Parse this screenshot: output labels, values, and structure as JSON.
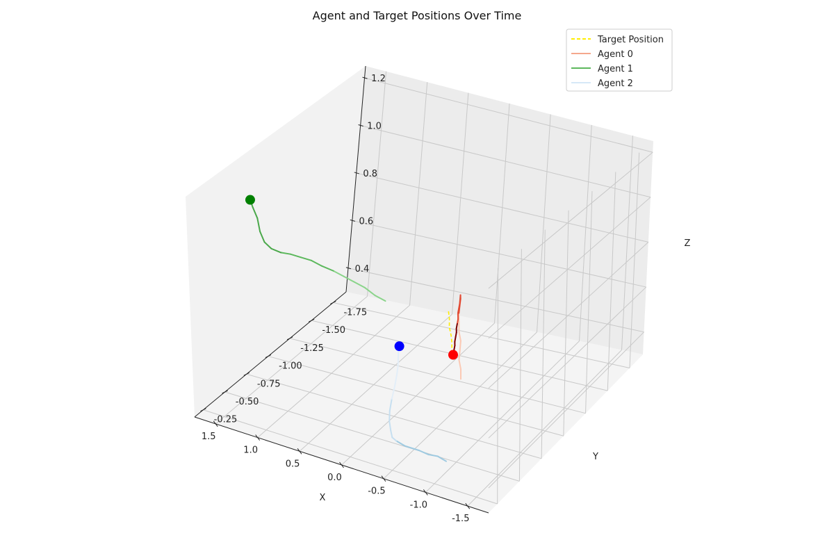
{
  "chart_data": {
    "type": "line",
    "title": "Agent and Target Positions Over Time",
    "xlabel": "X",
    "ylabel": "Y",
    "zlabel": "Z",
    "xlim": [
      -1.75,
      1.75
    ],
    "ylim": [
      -1.9,
      -0.15
    ],
    "zlim": [
      0.3,
      1.25
    ],
    "xticks": [
      "-1.5",
      "-1.0",
      "-0.5",
      "0.0",
      "0.5",
      "1.0",
      "1.5"
    ],
    "yticks": [
      "-1.75",
      "-1.50",
      "-1.25",
      "-1.00",
      "-0.75",
      "-0.50",
      "-0.25"
    ],
    "zticks": [
      "0.4",
      "0.6",
      "0.8",
      "1.0",
      "1.2"
    ],
    "grid": true,
    "legend_position": "top-right",
    "legend": [
      {
        "label": "Target Position",
        "color": "#ffee00",
        "style": "dashed"
      },
      {
        "label": "Agent 0",
        "color": "#f5a78c",
        "style": "solid"
      },
      {
        "label": "Agent 1",
        "color": "#5cb85c",
        "style": "solid"
      },
      {
        "label": "Agent 2",
        "color": "#d6e8f7",
        "style": "solid"
      }
    ],
    "series": [
      {
        "name": "Target Position",
        "color": "#ffee00",
        "points": [
          [
            -1.12,
            -0.3,
            1.0
          ],
          [
            -1.13,
            -0.3,
            0.97
          ],
          [
            -1.14,
            -0.29,
            0.94
          ],
          [
            -1.16,
            -0.29,
            0.91
          ],
          [
            -1.17,
            -0.29,
            0.88
          ],
          [
            -1.18,
            -0.28,
            0.85
          ],
          [
            -1.19,
            -0.28,
            0.82
          ]
        ]
      },
      {
        "name": "Agent 0",
        "colors": [
          "#fbc9b4",
          "#e24a33",
          "#7a0000"
        ],
        "end_marker_color": "#ff0000",
        "points": [
          [
            -1.22,
            -0.34,
            0.72
          ],
          [
            -1.22,
            -0.34,
            0.76
          ],
          [
            -1.21,
            -0.33,
            0.8
          ],
          [
            -1.22,
            -0.33,
            0.84
          ],
          [
            -1.23,
            -0.33,
            0.88
          ],
          [
            -1.22,
            -0.32,
            0.92
          ],
          [
            -1.22,
            -0.32,
            0.96
          ],
          [
            -1.23,
            -0.31,
            1.0
          ],
          [
            -1.24,
            -0.31,
            1.03
          ],
          [
            -1.25,
            -0.31,
            1.06
          ],
          [
            -1.26,
            -0.3,
            1.08
          ],
          [
            -1.24,
            -0.31,
            1.04
          ],
          [
            -1.22,
            -0.31,
            1.0
          ],
          [
            -1.21,
            -0.32,
            0.97
          ],
          [
            -1.2,
            -0.32,
            0.95
          ],
          [
            -1.19,
            -0.32,
            0.93
          ],
          [
            -1.18,
            -0.33,
            0.91
          ],
          [
            -1.17,
            -0.33,
            0.89
          ],
          [
            -1.16,
            -0.33,
            0.87
          ],
          [
            -1.15,
            -0.34,
            0.85
          ],
          [
            -1.14,
            -0.34,
            0.83
          ],
          [
            -1.13,
            -0.34,
            0.81
          ]
        ]
      },
      {
        "name": "Agent 1",
        "colors": [
          "#8ad48a",
          "#5cb85c",
          "#4aa84a"
        ],
        "end_marker_color": "#008000",
        "points": [
          [
            -0.05,
            -0.6,
            0.84
          ],
          [
            0.05,
            -0.58,
            0.86
          ],
          [
            0.15,
            -0.56,
            0.89
          ],
          [
            0.25,
            -0.54,
            0.91
          ],
          [
            0.35,
            -0.52,
            0.93
          ],
          [
            0.45,
            -0.5,
            0.95
          ],
          [
            0.55,
            -0.47,
            0.97
          ],
          [
            0.65,
            -0.45,
            0.99
          ],
          [
            0.75,
            -0.43,
            1.0
          ],
          [
            0.85,
            -0.41,
            1.01
          ],
          [
            0.95,
            -0.4,
            1.01
          ],
          [
            1.05,
            -0.39,
            1.02
          ],
          [
            1.13,
            -0.39,
            1.04
          ],
          [
            1.18,
            -0.39,
            1.08
          ],
          [
            1.22,
            -0.4,
            1.13
          ],
          [
            1.27,
            -0.4,
            1.17
          ],
          [
            1.3,
            -0.4,
            1.2
          ]
        ]
      },
      {
        "name": "Agent 2",
        "colors": [
          "#9ecae1",
          "#c6dff0",
          "#e3eef8"
        ],
        "end_marker_color": "#0000ff",
        "points": [
          [
            -0.9,
            -0.48,
            0.3
          ],
          [
            -0.8,
            -0.48,
            0.31
          ],
          [
            -0.7,
            -0.47,
            0.31
          ],
          [
            -0.6,
            -0.46,
            0.32
          ],
          [
            -0.45,
            -0.44,
            0.33
          ],
          [
            -0.35,
            -0.44,
            0.34
          ],
          [
            -0.28,
            -0.46,
            0.34
          ],
          [
            -0.2,
            -0.52,
            0.34
          ],
          [
            -0.1,
            -0.6,
            0.34
          ],
          [
            0.0,
            -0.7,
            0.34
          ],
          [
            0.1,
            -0.82,
            0.34
          ],
          [
            0.2,
            -0.95,
            0.34
          ],
          [
            0.3,
            -1.07,
            0.34
          ],
          [
            0.4,
            -1.18,
            0.33
          ],
          [
            0.5,
            -1.28,
            0.32
          ],
          [
            0.6,
            -1.38,
            0.31
          ],
          [
            0.66,
            -1.45,
            0.3
          ]
        ]
      }
    ]
  }
}
